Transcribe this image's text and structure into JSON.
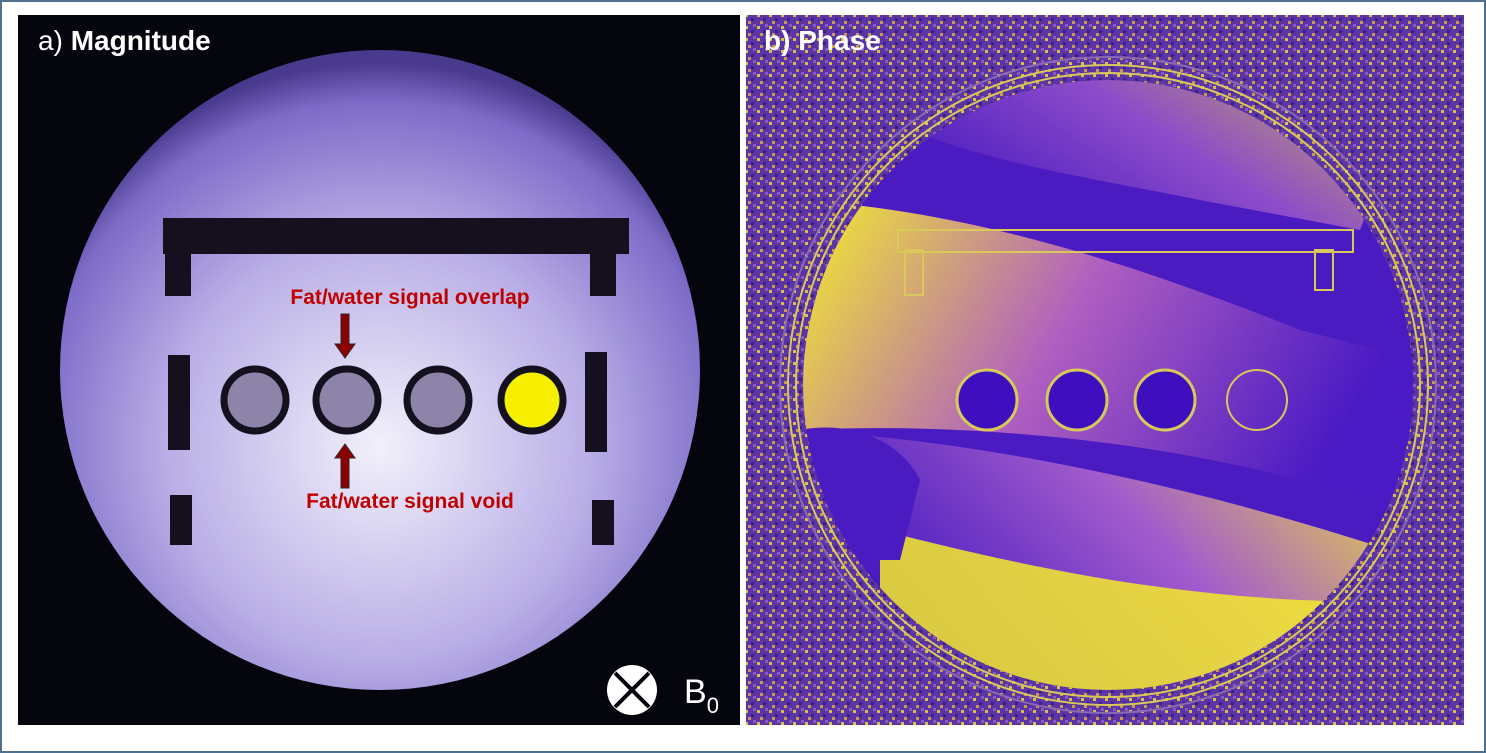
{
  "panels": [
    {
      "label": "a)",
      "title": "Magnitude",
      "annotations": [
        "Fat/water signal overlap",
        "Fat/water signal void"
      ],
      "field": {
        "symbol": "B",
        "subscript": "0"
      }
    },
    {
      "label": "b)",
      "title": "Phase"
    }
  ]
}
